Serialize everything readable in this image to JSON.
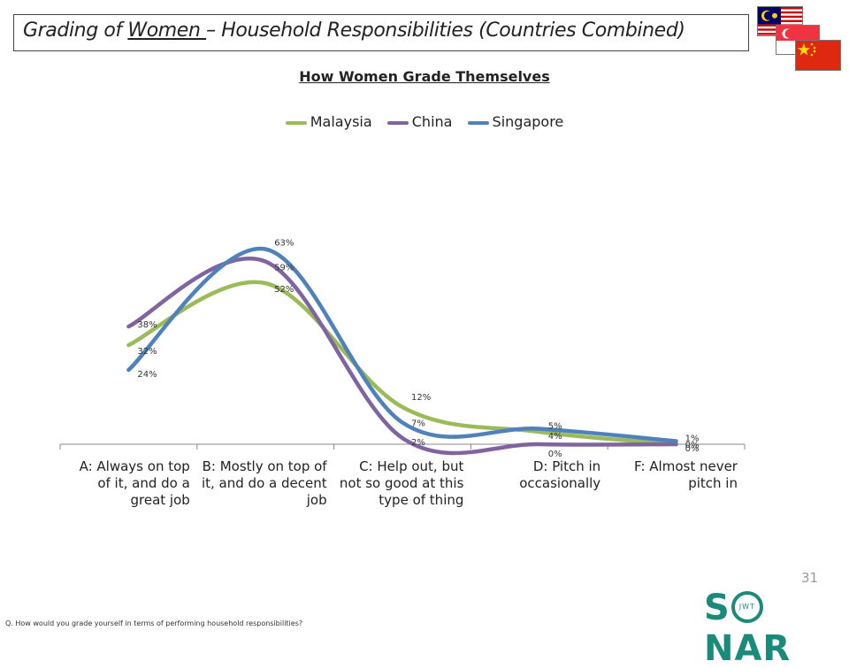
{
  "slide": {
    "title_pre": "Grading of ",
    "title_underlined": "Women ",
    "title_post": "– Household Responsibilities (Countries Combined)",
    "page_number": "31",
    "footnote": "Q. How would you grade yourself in terms of performing household responsibilities?",
    "logo": {
      "left": "S",
      "inner": "JWT",
      "right": "NAR"
    }
  },
  "flags": [
    {
      "name": "Malaysia",
      "colors": [
        "#cc0001",
        "#ffffff",
        "#010066",
        "#ffcc00"
      ]
    },
    {
      "name": "Singapore",
      "colors": [
        "#ef3340",
        "#ffffff"
      ]
    },
    {
      "name": "China",
      "colors": [
        "#de2910",
        "#ffde00"
      ]
    }
  ],
  "chart_data": {
    "type": "line",
    "title": "How Women Grade Themselves",
    "categories": [
      "A: Always on top of it, and do a great job",
      "B: Mostly on top of it, and do a decent job",
      "C: Help out, but not so good at this type of thing",
      "D: Pitch in occasionally",
      "F: Almost never pitch in"
    ],
    "category_lines": [
      [
        "A: Always on top",
        "of it, and do a",
        "great job"
      ],
      [
        "B: Mostly on top of",
        "it, and do a decent",
        "job"
      ],
      [
        "C: Help out, but",
        "not so good at this",
        "type of thing"
      ],
      [
        "D: Pitch in",
        "occasionally"
      ],
      [
        "F: Almost never",
        "pitch in"
      ]
    ],
    "ylim": [
      0,
      70
    ],
    "smooth": true,
    "legend_position": "top",
    "series": [
      {
        "name": "Malaysia",
        "color": "#9bbb59",
        "values": [
          32,
          52,
          12,
          4,
          0
        ],
        "labels": [
          "32%",
          "52%",
          "12%",
          "4%",
          "0%"
        ]
      },
      {
        "name": "China",
        "color": "#8064a2",
        "values": [
          38,
          59,
          2,
          0,
          0
        ],
        "labels": [
          "38%",
          "59%",
          "2%",
          "0%",
          "0%"
        ]
      },
      {
        "name": "Singapore",
        "color": "#4f81bd",
        "values": [
          24,
          63,
          7,
          5,
          1
        ],
        "labels": [
          "24%",
          "63%",
          "7%",
          "5%",
          "1%"
        ]
      }
    ]
  }
}
